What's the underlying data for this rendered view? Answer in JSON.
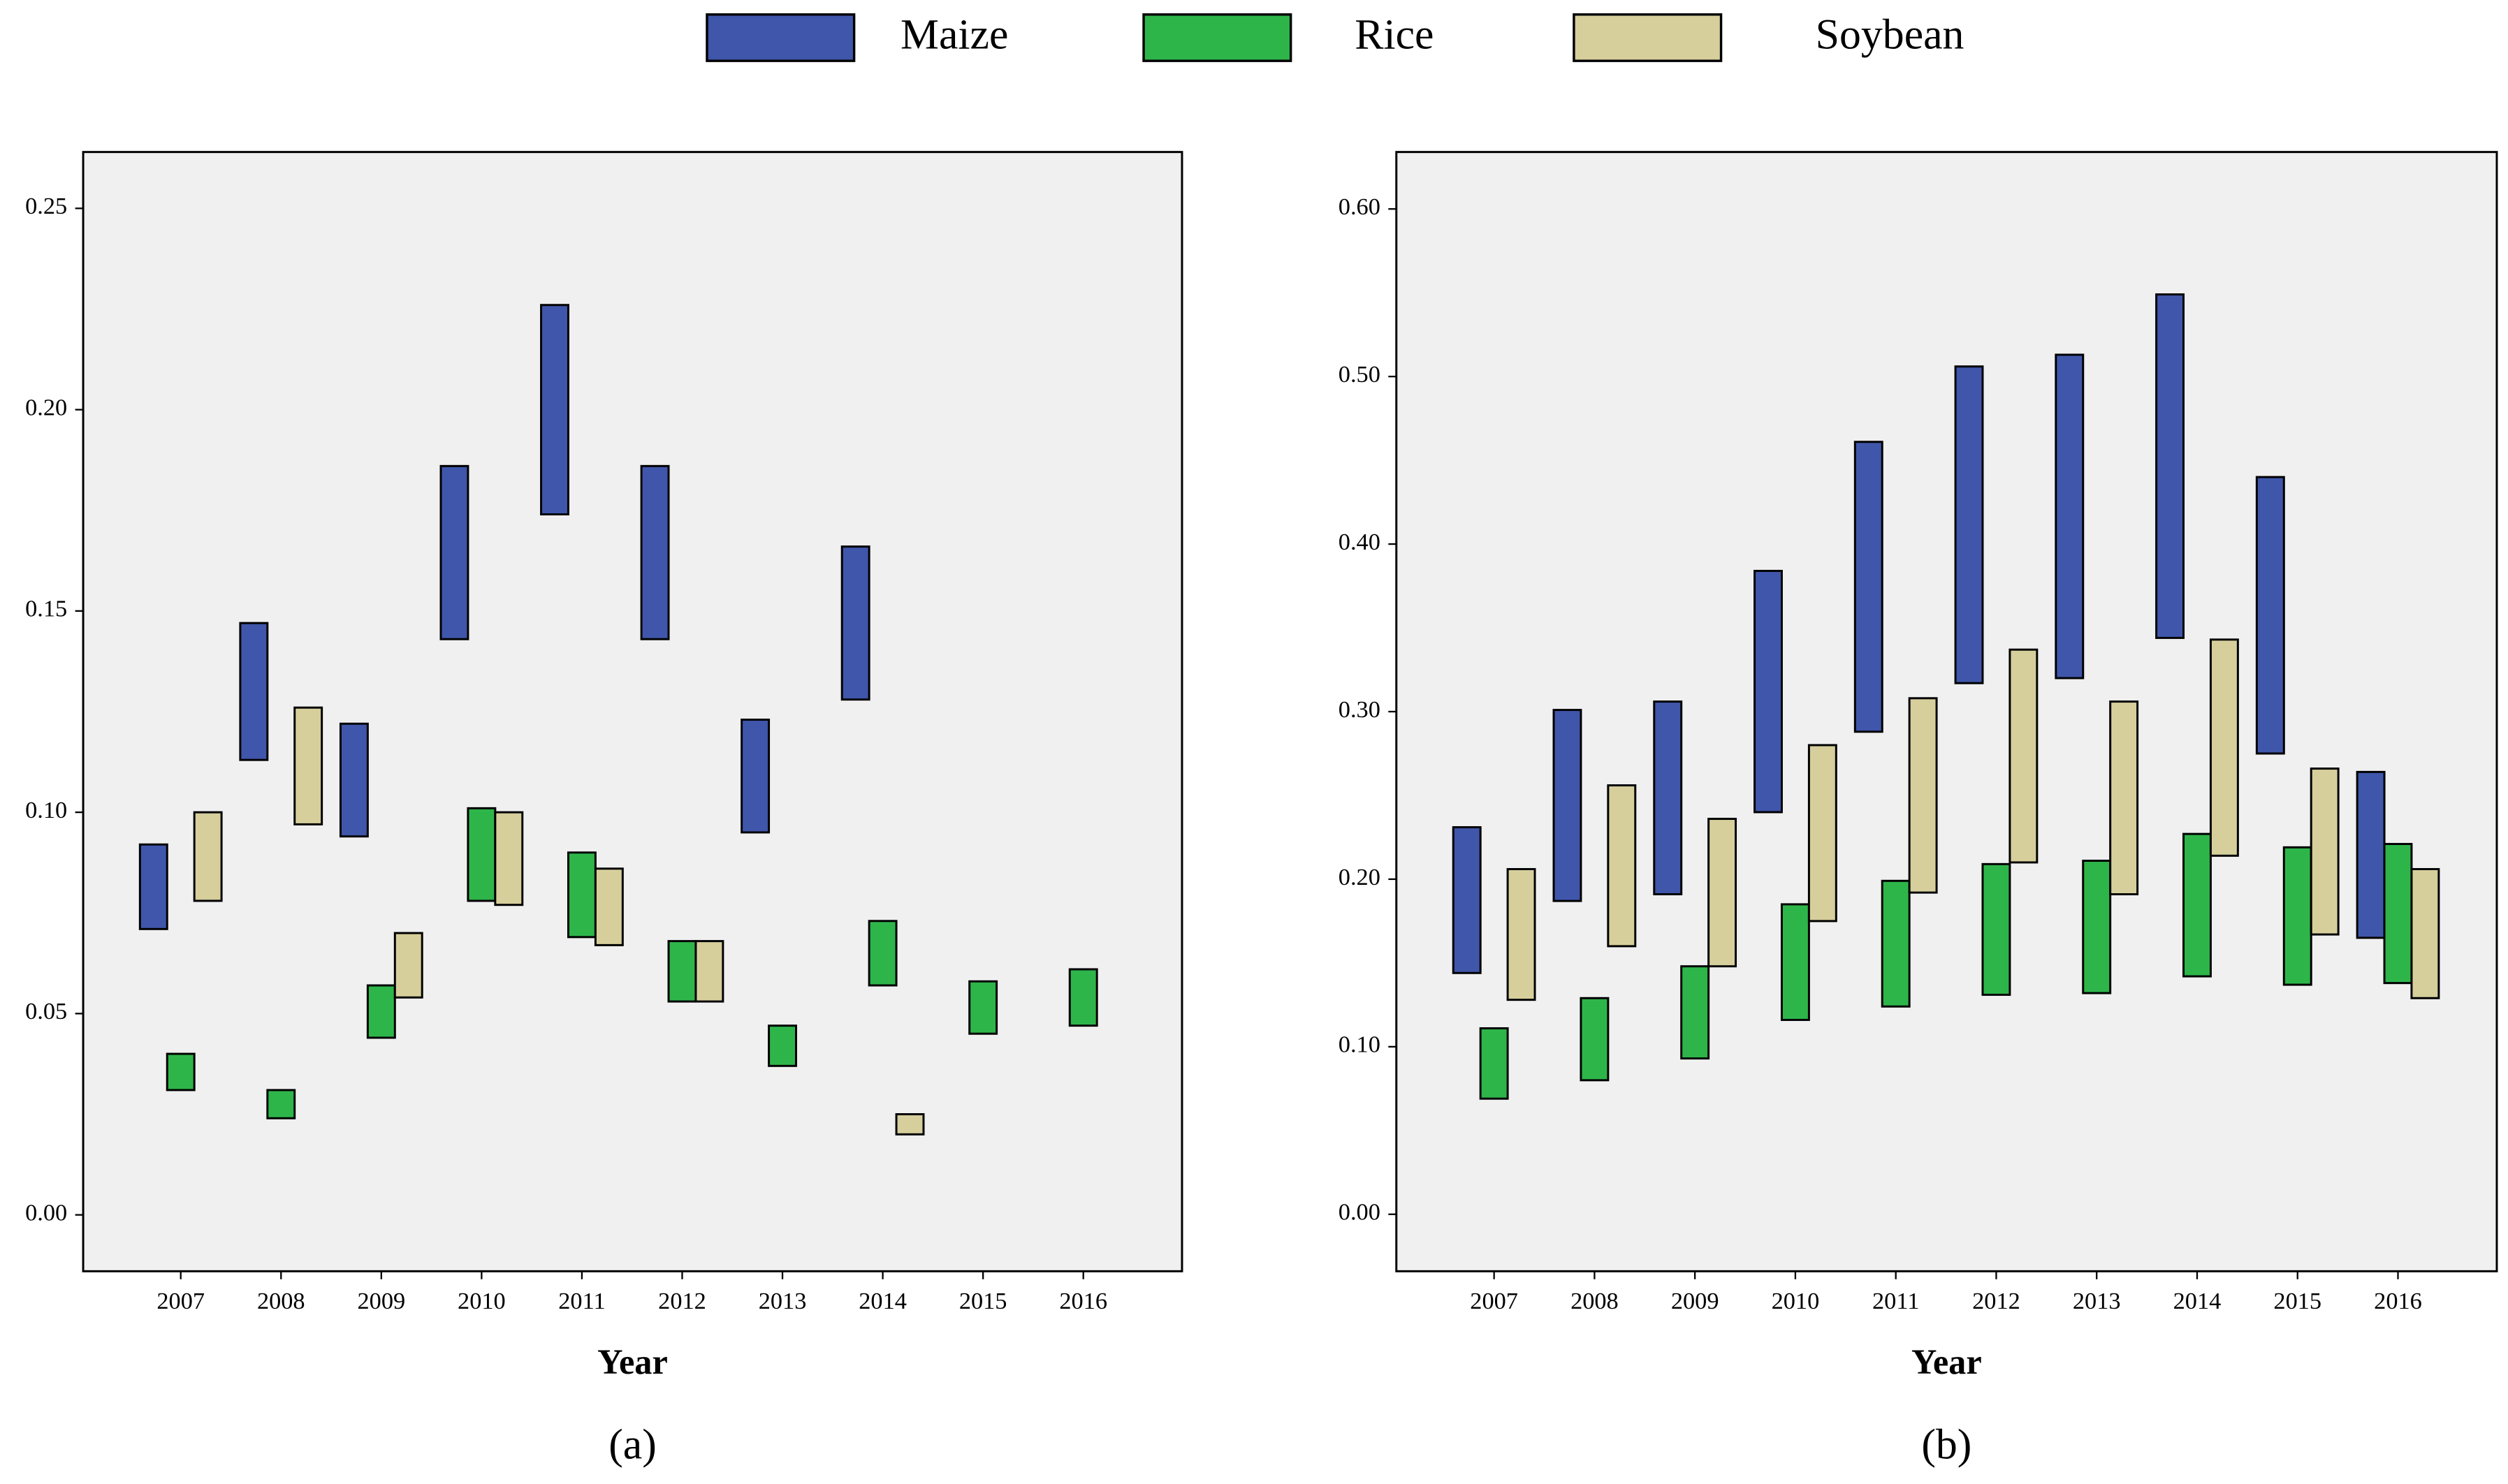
{
  "chart_data": [
    {
      "type": "range-bar",
      "label": "(a)",
      "x_label": "Year",
      "categories": [
        "2007",
        "2008",
        "2009",
        "2010",
        "2011",
        "2012",
        "2013",
        "2014",
        "2015",
        "2016"
      ],
      "series": [
        {
          "name": "Maize",
          "color": "#3f56aa",
          "low": [
            0.071,
            0.113,
            0.094,
            0.143,
            0.174,
            0.143,
            0.095,
            0.128,
            0,
            0
          ],
          "high": [
            0.092,
            0.147,
            0.122,
            0.186,
            0.226,
            0.186,
            0.123,
            0.166,
            0,
            0
          ]
        },
        {
          "name": "Rice",
          "color": "#2eb54a",
          "low": [
            0.031,
            0.024,
            0.044,
            0.078,
            0.069,
            0.053,
            0.037,
            0.057,
            0.045,
            0.047
          ],
          "high": [
            0.04,
            0.031,
            0.057,
            0.101,
            0.09,
            0.068,
            0.047,
            0.073,
            0.058,
            0.061
          ]
        },
        {
          "name": "Soybean",
          "color": "#d6cf9c",
          "low": [
            0.078,
            0.097,
            0.054,
            0.077,
            0.067,
            0.053,
            0,
            0.02,
            0,
            0
          ],
          "high": [
            0.1,
            0.126,
            0.07,
            0.1,
            0.086,
            0.068,
            0,
            0.025,
            0,
            0
          ]
        }
      ],
      "ylim": [
        -0.014,
        0.264
      ],
      "yticks": [
        {
          "value": 0,
          "label": "0.00"
        },
        {
          "value": 0.05,
          "label": "0.05"
        },
        {
          "value": 0.1,
          "label": "0.10"
        },
        {
          "value": 0.15,
          "label": "0.15"
        },
        {
          "value": 0.2,
          "label": "0.20"
        },
        {
          "value": 0.25,
          "label": "0.25"
        }
      ]
    },
    {
      "type": "range-bar",
      "label": "(b)",
      "x_label": "Year",
      "categories": [
        "2007",
        "2008",
        "2009",
        "2010",
        "2011",
        "2012",
        "2013",
        "2014",
        "2015",
        "2016"
      ],
      "series": [
        {
          "color": "#3f56aa",
          "low": [
            0.144,
            0.187,
            0.191,
            0.24,
            0.288,
            0.317,
            0.32,
            0.344,
            0.275,
            0.165
          ],
          "high": [
            0.231,
            0.301,
            0.306,
            0.384,
            0.461,
            0.506,
            0.513,
            0.549,
            0.44,
            0.264
          ]
        },
        {
          "color": "#2eb54a",
          "low": [
            0.069,
            0.08,
            0.093,
            0.116,
            0.124,
            0.131,
            0.132,
            0.142,
            0.137,
            0.138
          ],
          "high": [
            0.111,
            0.129,
            0.148,
            0.185,
            0.199,
            0.209,
            0.211,
            0.227,
            0.219,
            0.221
          ]
        },
        {
          "color": "#d6cf9c",
          "low": [
            0.128,
            0.16,
            0.148,
            0.175,
            0.192,
            0.21,
            0.191,
            0.214,
            0.167,
            0.129
          ],
          "high": [
            0.206,
            0.256,
            0.236,
            0.28,
            0.308,
            0.337,
            0.306,
            0.343,
            0.266,
            0.206
          ]
        }
      ],
      "ylim": [
        -0.034,
        0.634
      ],
      "yticks": [
        {
          "value": 0,
          "label": "0.00"
        },
        {
          "value": 0.1,
          "label": "0.10"
        },
        {
          "value": 0.2,
          "label": "0.20"
        },
        {
          "value": 0.3,
          "label": "0.30"
        },
        {
          "value": 0.4,
          "label": "0.40"
        },
        {
          "value": 0.5,
          "label": "0.50"
        },
        {
          "value": 0.6,
          "label": "0.60"
        }
      ]
    }
  ]
}
